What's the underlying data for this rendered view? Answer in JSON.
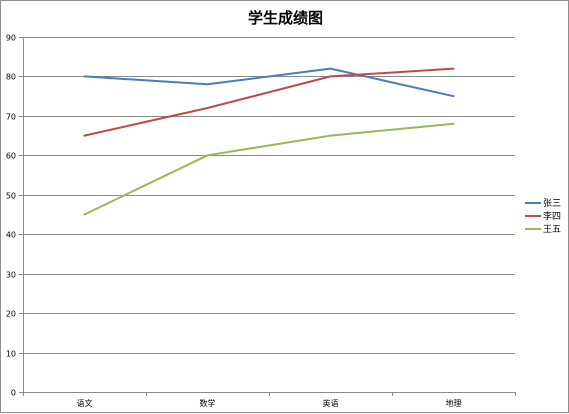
{
  "chart_data": {
    "type": "line",
    "title": "学生成绩图",
    "xlabel": "",
    "ylabel": "",
    "categories": [
      "语文",
      "数学",
      "英语",
      "地理"
    ],
    "ylim": [
      0,
      90
    ],
    "yticks": [
      0,
      10,
      20,
      30,
      40,
      50,
      60,
      70,
      80,
      90
    ],
    "grid": true,
    "legend_position": "right",
    "series": [
      {
        "name": "张三",
        "color": "#4a7ebb",
        "values": [
          80,
          78,
          82,
          75
        ]
      },
      {
        "name": "李四",
        "color": "#be4b48",
        "values": [
          65,
          72,
          80,
          82
        ]
      },
      {
        "name": "王五",
        "color": "#98b954",
        "values": [
          45,
          60,
          65,
          68
        ]
      }
    ]
  }
}
